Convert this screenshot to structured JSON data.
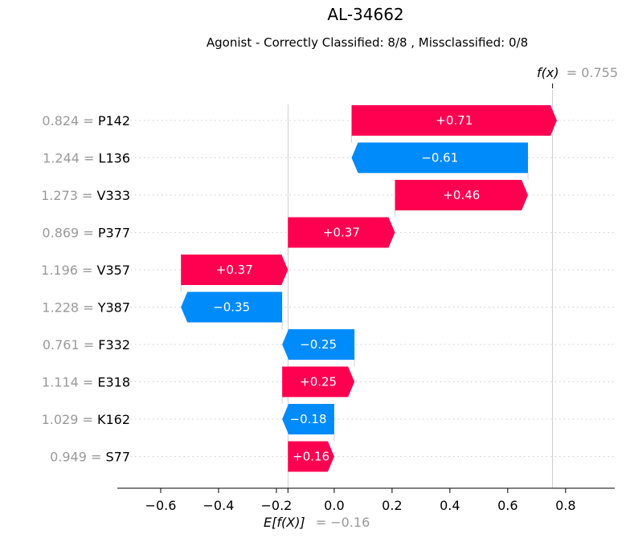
{
  "chart_data": {
    "type": "waterfall",
    "title": "AL-34662",
    "subtitle": "Agonist - Correctly Classified: 8/8 , Missclassified: 0/8",
    "base_value": -0.16,
    "base_value_label": "= −0.16",
    "base_label": "E[f(X)]",
    "output_value": 0.755,
    "output_value_label": "= 0.755",
    "output_label": "f(x)",
    "xlim": [
      -0.75,
      0.97
    ],
    "xticks": [
      -0.6,
      -0.4,
      -0.2,
      0.0,
      0.2,
      0.4,
      0.6,
      0.8
    ],
    "xtick_labels": [
      "−0.6",
      "−0.4",
      "−0.2",
      "0.0",
      "0.2",
      "0.4",
      "0.6",
      "0.8"
    ],
    "features": [
      {
        "value": "0.824",
        "name": "P142",
        "contribution": 0.71,
        "label": "+0.71"
      },
      {
        "value": "1.244",
        "name": "L136",
        "contribution": -0.61,
        "label": "−0.61"
      },
      {
        "value": "1.273",
        "name": "V333",
        "contribution": 0.46,
        "label": "+0.46"
      },
      {
        "value": "0.869",
        "name": "P377",
        "contribution": 0.37,
        "label": "+0.37"
      },
      {
        "value": "1.196",
        "name": "V357",
        "contribution": 0.37,
        "label": "+0.37"
      },
      {
        "value": "1.228",
        "name": "Y387",
        "contribution": -0.35,
        "label": "−0.35"
      },
      {
        "value": "0.761",
        "name": "F332",
        "contribution": -0.25,
        "label": "−0.25"
      },
      {
        "value": "1.114",
        "name": "E318",
        "contribution": 0.25,
        "label": "+0.25"
      },
      {
        "value": "1.029",
        "name": "K162",
        "contribution": -0.18,
        "label": "−0.18"
      },
      {
        "value": "0.949",
        "name": "S77",
        "contribution": 0.16,
        "label": "+0.16"
      }
    ],
    "colors": {
      "positive": "#ff0051",
      "negative": "#008bfb",
      "muted": "#999999"
    }
  }
}
